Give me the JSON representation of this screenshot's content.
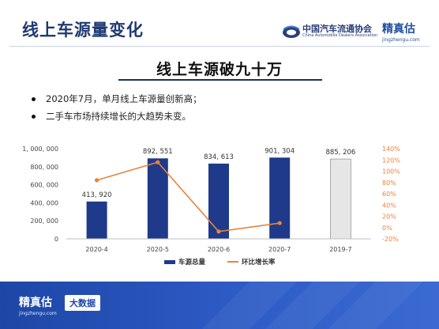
{
  "header": {
    "title": "线上车源量变化",
    "cada_name_cn": "中国汽车流通协会",
    "cada_name_en": "China Automobile Dealers Association",
    "brand_cn": "精真估",
    "brand_url": "jingzhengu.com"
  },
  "slide": {
    "subtitle": "线上车源破九十万",
    "bullets": [
      "2020年7月，单月线上车源量创新高；",
      "二手车市场持续增长的大趋势未变。"
    ]
  },
  "footer": {
    "brand_cn": "精真估",
    "brand_url": "jingzhengu.com",
    "tag": "大数据"
  },
  "colors": {
    "title": "#1f3a72",
    "bar": "#1f3a8a",
    "bar_highlight": "#e6e6e6",
    "line": "#e8833a",
    "footer": "#1d46a6"
  },
  "chart_data": {
    "type": "bar",
    "categories": [
      "2020-4",
      "2020-5",
      "2020-6",
      "2020-7",
      "2019-7"
    ],
    "series": [
      {
        "name": "车源总量",
        "type": "bar",
        "axis": "left",
        "values": [
          413920,
          892551,
          834613,
          901304,
          885206
        ],
        "labels": [
          "413, 920",
          "892, 551",
          "834, 613",
          "901, 304",
          "885, 206"
        ],
        "highlight_index": 4
      },
      {
        "name": "环比增长率",
        "type": "line",
        "axis": "right",
        "values": [
          84,
          116,
          -7,
          8,
          null
        ]
      }
    ],
    "y_left": {
      "min": 0,
      "max": 1000000,
      "ticks": [
        "1, 000, 000",
        "800, 000",
        "600, 000",
        "400, 000",
        "200, 000",
        "0"
      ]
    },
    "y_right": {
      "min": -20,
      "max": 140,
      "ticks": [
        "140%",
        "120%",
        "100%",
        "80%",
        "60%",
        "40%",
        "20%",
        "0%",
        "-20%"
      ]
    },
    "legend": {
      "position": "bottom",
      "entries": [
        "车源总量",
        "环比增长率"
      ]
    }
  }
}
